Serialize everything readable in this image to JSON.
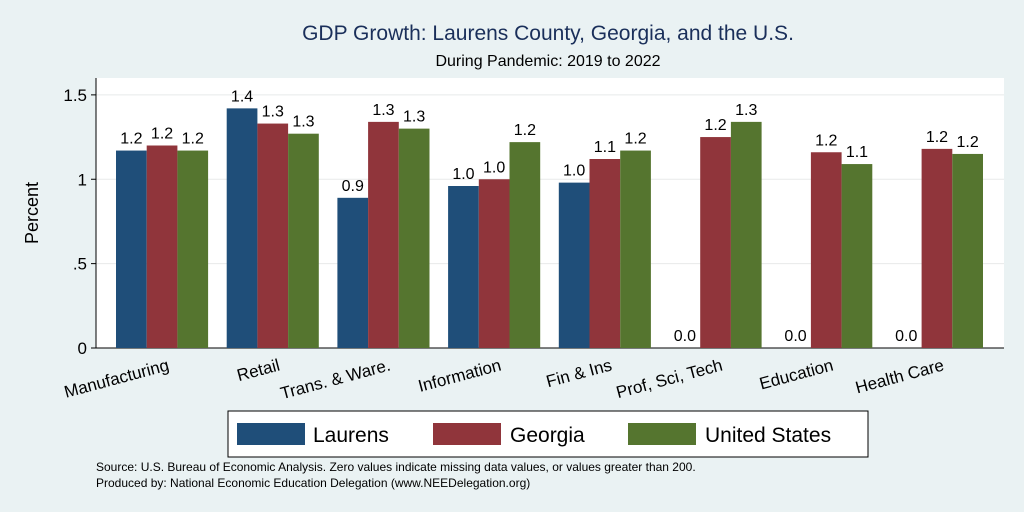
{
  "chart_data": {
    "type": "bar",
    "title": "GDP Growth: Laurens County, Georgia, and the U.S.",
    "subtitle": "During Pandemic: 2019 to 2022",
    "ylabel": "Percent",
    "ylim": [
      0,
      1.6
    ],
    "yticks": [
      0,
      0.5,
      1,
      1.5
    ],
    "ytick_labels": [
      "0",
      ".5",
      "1",
      "1.5"
    ],
    "grid": true,
    "legend_position": "bottom",
    "categories": [
      "Manufacturing",
      "Retail",
      "Trans. & Ware.",
      "Information",
      "Fin & Ins",
      "Prof, Sci, Tech",
      "Education",
      "Health Care"
    ],
    "series": [
      {
        "name": "Laurens",
        "color": "#1f4e79",
        "values": [
          1.17,
          1.42,
          0.89,
          0.96,
          0.98,
          0,
          0,
          0
        ],
        "labels": [
          "1.2",
          "1.4",
          "0.9",
          "1.0",
          "1.0",
          "0.0",
          "0.0",
          "0.0"
        ]
      },
      {
        "name": "Georgia",
        "color": "#90353b",
        "values": [
          1.2,
          1.33,
          1.34,
          1.0,
          1.12,
          1.25,
          1.16,
          1.18
        ],
        "labels": [
          "1.2",
          "1.3",
          "1.3",
          "1.0",
          "1.1",
          "1.2",
          "1.2",
          "1.2"
        ]
      },
      {
        "name": "United States",
        "color": "#55752f",
        "values": [
          1.17,
          1.27,
          1.3,
          1.22,
          1.17,
          1.34,
          1.09,
          1.15
        ],
        "labels": [
          "1.2",
          "1.3",
          "1.3",
          "1.2",
          "1.2",
          "1.3",
          "1.1",
          "1.2"
        ]
      }
    ],
    "notes": [
      "Source: U.S. Bureau of Economic Analysis. Zero values indicate missing data values, or values greater than 200.",
      "Produced by: National Economic Education Delegation (www.NEEDelegation.org)"
    ]
  }
}
